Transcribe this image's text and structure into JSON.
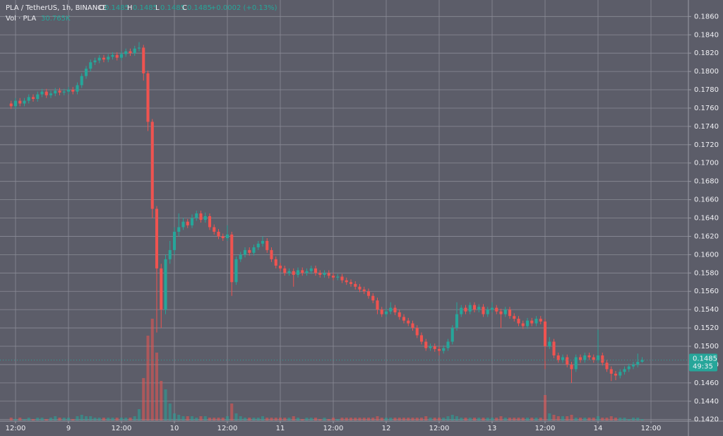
{
  "chart_data": {
    "type": "candlestick",
    "title": "PLA / TetherUS, 1h, BINANCE",
    "ohlc_labels": [
      "O",
      "H",
      "L",
      "C"
    ],
    "ohlc_values": [
      0.1485,
      0.1485,
      0.1485,
      0.1485
    ],
    "change": "+0.0002 (+0.13%)",
    "volume_title": "Vol · PLA",
    "volume_value": "30.765K",
    "last_price": 0.1485,
    "countdown": "49:35",
    "up_color": "#26a69a",
    "down_color": "#ef5350",
    "grid": true,
    "xlim": [
      -3.52,
      152.48
    ],
    "xticks": [
      {
        "value": 0,
        "label": "12:00"
      },
      {
        "value": 12,
        "label": "9"
      },
      {
        "value": 24,
        "label": "12:00"
      },
      {
        "value": 36,
        "label": "10"
      },
      {
        "value": 48,
        "label": "12:00"
      },
      {
        "value": 60,
        "label": "11"
      },
      {
        "value": 72,
        "label": "12:00"
      },
      {
        "value": 84,
        "label": "12"
      },
      {
        "value": 96,
        "label": "12:00"
      },
      {
        "value": 108,
        "label": "13"
      },
      {
        "value": 120,
        "label": "12:00"
      },
      {
        "value": 132,
        "label": "14"
      },
      {
        "value": 144,
        "label": "12:00"
      }
    ],
    "ylim": [
      0.1419,
      0.1878
    ],
    "yticks": [
      {
        "value": 0.142,
        "label": "0.1420"
      },
      {
        "value": 0.144,
        "label": "0.1440"
      },
      {
        "value": 0.146,
        "label": "0.1460"
      },
      {
        "value": 0.148,
        "label": "0.1480"
      },
      {
        "value": 0.15,
        "label": "0.1500"
      },
      {
        "value": 0.152,
        "label": "0.1520"
      },
      {
        "value": 0.154,
        "label": "0.1540"
      },
      {
        "value": 0.156,
        "label": "0.1560"
      },
      {
        "value": 0.158,
        "label": "0.1580"
      },
      {
        "value": 0.16,
        "label": "0.1600"
      },
      {
        "value": 0.162,
        "label": "0.1620"
      },
      {
        "value": 0.164,
        "label": "0.1640"
      },
      {
        "value": 0.166,
        "label": "0.1660"
      },
      {
        "value": 0.168,
        "label": "0.1680"
      },
      {
        "value": 0.17,
        "label": "0.1700"
      },
      {
        "value": 0.172,
        "label": "0.1720"
      },
      {
        "value": 0.174,
        "label": "0.1740"
      },
      {
        "value": 0.176,
        "label": "0.1760"
      },
      {
        "value": 0.178,
        "label": "0.1780"
      },
      {
        "value": 0.18,
        "label": "0.1800"
      },
      {
        "value": 0.182,
        "label": "0.1820"
      },
      {
        "value": 0.184,
        "label": "0.1840"
      },
      {
        "value": 0.186,
        "label": "0.1860"
      }
    ],
    "volume_ylim": [
      0,
      100
    ],
    "x": [
      -1,
      0,
      1,
      2,
      3,
      4,
      5,
      6,
      7,
      8,
      9,
      10,
      11,
      12,
      13,
      14,
      15,
      16,
      17,
      18,
      19,
      20,
      21,
      22,
      23,
      24,
      25,
      26,
      27,
      28,
      29,
      30,
      31,
      32,
      33,
      34,
      35,
      36,
      37,
      38,
      39,
      40,
      41,
      42,
      43,
      44,
      45,
      46,
      47,
      48,
      49,
      50,
      51,
      52,
      53,
      54,
      55,
      56,
      57,
      58,
      59,
      60,
      61,
      62,
      63,
      64,
      65,
      66,
      67,
      68,
      69,
      70,
      71,
      72,
      73,
      74,
      75,
      76,
      77,
      78,
      79,
      80,
      81,
      82,
      83,
      84,
      85,
      86,
      87,
      88,
      89,
      90,
      91,
      92,
      93,
      94,
      95,
      96,
      97,
      98,
      99,
      100,
      101,
      102,
      103,
      104,
      105,
      106,
      107,
      108,
      109,
      110,
      111,
      112,
      113,
      114,
      115,
      116,
      117,
      118,
      119,
      120,
      121,
      122,
      123,
      124,
      125,
      126,
      127,
      128,
      129,
      130,
      131,
      132,
      133,
      134,
      135,
      136,
      137,
      138,
      139,
      140,
      141,
      142
    ],
    "open": [
      0.1765,
      0.1762,
      0.1768,
      0.1765,
      0.1768,
      0.1772,
      0.177,
      0.1775,
      0.1778,
      0.1774,
      0.1776,
      0.1779,
      0.1777,
      0.1778,
      0.178,
      0.1778,
      0.1785,
      0.1795,
      0.1803,
      0.181,
      0.1812,
      0.1815,
      0.1813,
      0.1816,
      0.1818,
      0.1815,
      0.1819,
      0.1822,
      0.182,
      0.1825,
      0.1826,
      0.1798,
      0.1745,
      0.165,
      0.1585,
      0.154,
      0.1595,
      0.1605,
      0.1625,
      0.163,
      0.1636,
      0.1632,
      0.164,
      0.1645,
      0.1638,
      0.1642,
      0.163,
      0.1625,
      0.162,
      0.1618,
      0.1622,
      0.157,
      0.1595,
      0.16,
      0.1605,
      0.1602,
      0.1608,
      0.1612,
      0.1615,
      0.1605,
      0.1595,
      0.1588,
      0.1585,
      0.158,
      0.1582,
      0.1578,
      0.1583,
      0.158,
      0.1582,
      0.1585,
      0.158,
      0.1578,
      0.158,
      0.1577,
      0.1575,
      0.1576,
      0.1572,
      0.157,
      0.1568,
      0.1565,
      0.1562,
      0.156,
      0.1555,
      0.155,
      0.154,
      0.1535,
      0.1538,
      0.1542,
      0.1537,
      0.1532,
      0.1528,
      0.1525,
      0.152,
      0.1512,
      0.1505,
      0.1498,
      0.15,
      0.1497,
      0.1495,
      0.1498,
      0.1505,
      0.152,
      0.1535,
      0.1542,
      0.1538,
      0.1545,
      0.154,
      0.1543,
      0.1535,
      0.154,
      0.1542,
      0.1538,
      0.1535,
      0.154,
      0.1533,
      0.153,
      0.1525,
      0.1522,
      0.1528,
      0.1525,
      0.153,
      0.1527,
      0.15,
      0.1505,
      0.149,
      0.1485,
      0.1488,
      0.148,
      0.1475,
      0.1488,
      0.1485,
      0.149,
      0.1488,
      0.1485,
      0.149,
      0.1482,
      0.1475,
      0.147,
      0.1468,
      0.1472,
      0.1475,
      0.1478,
      0.148,
      0.1483
    ],
    "high": [
      0.1768,
      0.1771,
      0.1771,
      0.1771,
      0.1775,
      0.1775,
      0.1778,
      0.1781,
      0.1781,
      0.1779,
      0.1782,
      0.1782,
      0.1781,
      0.1783,
      0.1783,
      0.1788,
      0.1798,
      0.1806,
      0.1813,
      0.1815,
      0.1818,
      0.1818,
      0.1819,
      0.1821,
      0.1821,
      0.1822,
      0.1825,
      0.1825,
      0.1828,
      0.1832,
      0.1829,
      0.1801,
      0.1748,
      0.1653,
      0.159,
      0.16,
      0.1615,
      0.163,
      0.1645,
      0.164,
      0.1639,
      0.1644,
      0.1648,
      0.1648,
      0.1646,
      0.1645,
      0.1633,
      0.1628,
      0.1623,
      0.1632,
      0.1625,
      0.1598,
      0.1603,
      0.1608,
      0.1608,
      0.1611,
      0.1615,
      0.162,
      0.1618,
      0.1608,
      0.1598,
      0.1591,
      0.1588,
      0.1585,
      0.1585,
      0.1586,
      0.1586,
      0.1585,
      0.1588,
      0.1588,
      0.1583,
      0.1583,
      0.1583,
      0.158,
      0.1579,
      0.1579,
      0.1575,
      0.1573,
      0.1571,
      0.1568,
      0.1565,
      0.1563,
      0.1558,
      0.1553,
      0.1543,
      0.1541,
      0.1548,
      0.1545,
      0.154,
      0.1535,
      0.1531,
      0.1528,
      0.1523,
      0.1515,
      0.1508,
      0.1503,
      0.1503,
      0.15,
      0.1501,
      0.1508,
      0.1523,
      0.1548,
      0.1545,
      0.1545,
      0.1548,
      0.1548,
      0.1546,
      0.1546,
      0.1543,
      0.1548,
      0.1545,
      0.1541,
      0.1543,
      0.1543,
      0.1536,
      0.1533,
      0.1528,
      0.1531,
      0.1531,
      0.1533,
      0.1533,
      0.153,
      0.151,
      0.1508,
      0.1493,
      0.1491,
      0.1491,
      0.1483,
      0.1491,
      0.1491,
      0.1493,
      0.1493,
      0.1491,
      0.1518,
      0.1493,
      0.1485,
      0.1478,
      0.1473,
      0.1475,
      0.1478,
      0.1481,
      0.1483,
      0.1492,
      0.1488
    ],
    "low": [
      0.1759,
      0.1759,
      0.1762,
      0.1762,
      0.1765,
      0.1767,
      0.1767,
      0.1772,
      0.1771,
      0.1771,
      0.1773,
      0.1774,
      0.1774,
      0.1775,
      0.1775,
      0.1775,
      0.1782,
      0.1792,
      0.18,
      0.1807,
      0.1809,
      0.181,
      0.181,
      0.1813,
      0.1812,
      0.1812,
      0.1816,
      0.1817,
      0.1817,
      0.1822,
      0.179,
      0.1735,
      0.164,
      0.1515,
      0.152,
      0.1535,
      0.159,
      0.16,
      0.162,
      0.1627,
      0.1629,
      0.1629,
      0.1637,
      0.1635,
      0.1635,
      0.1627,
      0.1622,
      0.1617,
      0.1615,
      0.1615,
      0.1555,
      0.1567,
      0.1592,
      0.1597,
      0.1599,
      0.1599,
      0.1605,
      0.1609,
      0.1602,
      0.1592,
      0.1585,
      0.1582,
      0.1577,
      0.1577,
      0.1565,
      0.1575,
      0.1577,
      0.1577,
      0.1579,
      0.1577,
      0.1575,
      0.1575,
      0.1574,
      0.1572,
      0.1572,
      0.1569,
      0.1567,
      0.1565,
      0.1562,
      0.1559,
      0.1557,
      0.1552,
      0.1547,
      0.1535,
      0.1532,
      0.1532,
      0.1535,
      0.1534,
      0.1529,
      0.1525,
      0.1522,
      0.1517,
      0.1509,
      0.1502,
      0.1495,
      0.1495,
      0.1494,
      0.149,
      0.1492,
      0.1495,
      0.1502,
      0.1517,
      0.1532,
      0.1535,
      0.1535,
      0.1537,
      0.1537,
      0.1532,
      0.1532,
      0.1537,
      0.1535,
      0.152,
      0.1532,
      0.153,
      0.1527,
      0.1522,
      0.1519,
      0.1519,
      0.1522,
      0.1522,
      0.1524,
      0.1475,
      0.1497,
      0.1487,
      0.1482,
      0.1482,
      0.1477,
      0.146,
      0.1472,
      0.1482,
      0.1482,
      0.1485,
      0.1482,
      0.1482,
      0.1479,
      0.1472,
      0.1462,
      0.1463,
      0.1465,
      0.1469,
      0.1472,
      0.1475,
      0.1477,
      0.1482
    ],
    "close": [
      0.1762,
      0.1768,
      0.1765,
      0.1768,
      0.1772,
      0.177,
      0.1775,
      0.1778,
      0.1774,
      0.1776,
      0.1779,
      0.1777,
      0.1778,
      0.178,
      0.1778,
      0.1785,
      0.1795,
      0.1803,
      0.181,
      0.1812,
      0.1815,
      0.1813,
      0.1816,
      0.1818,
      0.1815,
      0.1819,
      0.1822,
      0.182,
      0.1825,
      0.1826,
      0.1798,
      0.1745,
      0.165,
      0.1585,
      0.154,
      0.1595,
      0.1605,
      0.1625,
      0.163,
      0.1636,
      0.1632,
      0.164,
      0.1645,
      0.1638,
      0.1642,
      0.163,
      0.1625,
      0.162,
      0.1618,
      0.1622,
      0.157,
      0.1595,
      0.16,
      0.1605,
      0.1602,
      0.1608,
      0.1612,
      0.1615,
      0.1605,
      0.1595,
      0.1588,
      0.1585,
      0.158,
      0.1582,
      0.1578,
      0.1583,
      0.158,
      0.1582,
      0.1585,
      0.158,
      0.1578,
      0.158,
      0.1577,
      0.1575,
      0.1576,
      0.1572,
      0.157,
      0.1568,
      0.1565,
      0.1562,
      0.156,
      0.1555,
      0.155,
      0.154,
      0.1535,
      0.1538,
      0.1542,
      0.1537,
      0.1532,
      0.1528,
      0.1525,
      0.152,
      0.1512,
      0.1505,
      0.1498,
      0.15,
      0.1497,
      0.1495,
      0.1498,
      0.1505,
      0.152,
      0.1535,
      0.1542,
      0.1538,
      0.1545,
      0.154,
      0.1543,
      0.1535,
      0.154,
      0.1542,
      0.1538,
      0.1535,
      0.154,
      0.1533,
      0.153,
      0.1525,
      0.1522,
      0.1528,
      0.1525,
      0.153,
      0.1527,
      0.15,
      0.1505,
      0.149,
      0.1485,
      0.1488,
      0.148,
      0.1475,
      0.1488,
      0.1485,
      0.149,
      0.1488,
      0.1485,
      0.149,
      0.1482,
      0.1475,
      0.147,
      0.1468,
      0.1472,
      0.1475,
      0.1478,
      0.148,
      0.1483,
      0.1485
    ],
    "volume": [
      2,
      1,
      2,
      1,
      2,
      1,
      2,
      2,
      1,
      2,
      3,
      2,
      2,
      2,
      1,
      3,
      4,
      3,
      3,
      2,
      2,
      2,
      2,
      2,
      2,
      2,
      2,
      2,
      3,
      8,
      30,
      60,
      72,
      48,
      28,
      22,
      12,
      5,
      4,
      3,
      3,
      3,
      2,
      3,
      3,
      2,
      2,
      2,
      2,
      3,
      12,
      5,
      3,
      2,
      2,
      2,
      2,
      3,
      2,
      2,
      2,
      2,
      2,
      2,
      3,
      2,
      1,
      2,
      2,
      2,
      1,
      2,
      1,
      2,
      1,
      2,
      2,
      2,
      2,
      2,
      2,
      2,
      2,
      3,
      2,
      2,
      2,
      2,
      2,
      2,
      2,
      2,
      2,
      2,
      3,
      2,
      2,
      2,
      2,
      3,
      4,
      3,
      2,
      2,
      2,
      2,
      2,
      2,
      2,
      2,
      2,
      3,
      2,
      2,
      2,
      2,
      2,
      2,
      2,
      2,
      2,
      18,
      5,
      4,
      3,
      3,
      3,
      4,
      2,
      2,
      2,
      2,
      2,
      3,
      2,
      2,
      3,
      2,
      2,
      2,
      1,
      2,
      2,
      1
    ]
  }
}
